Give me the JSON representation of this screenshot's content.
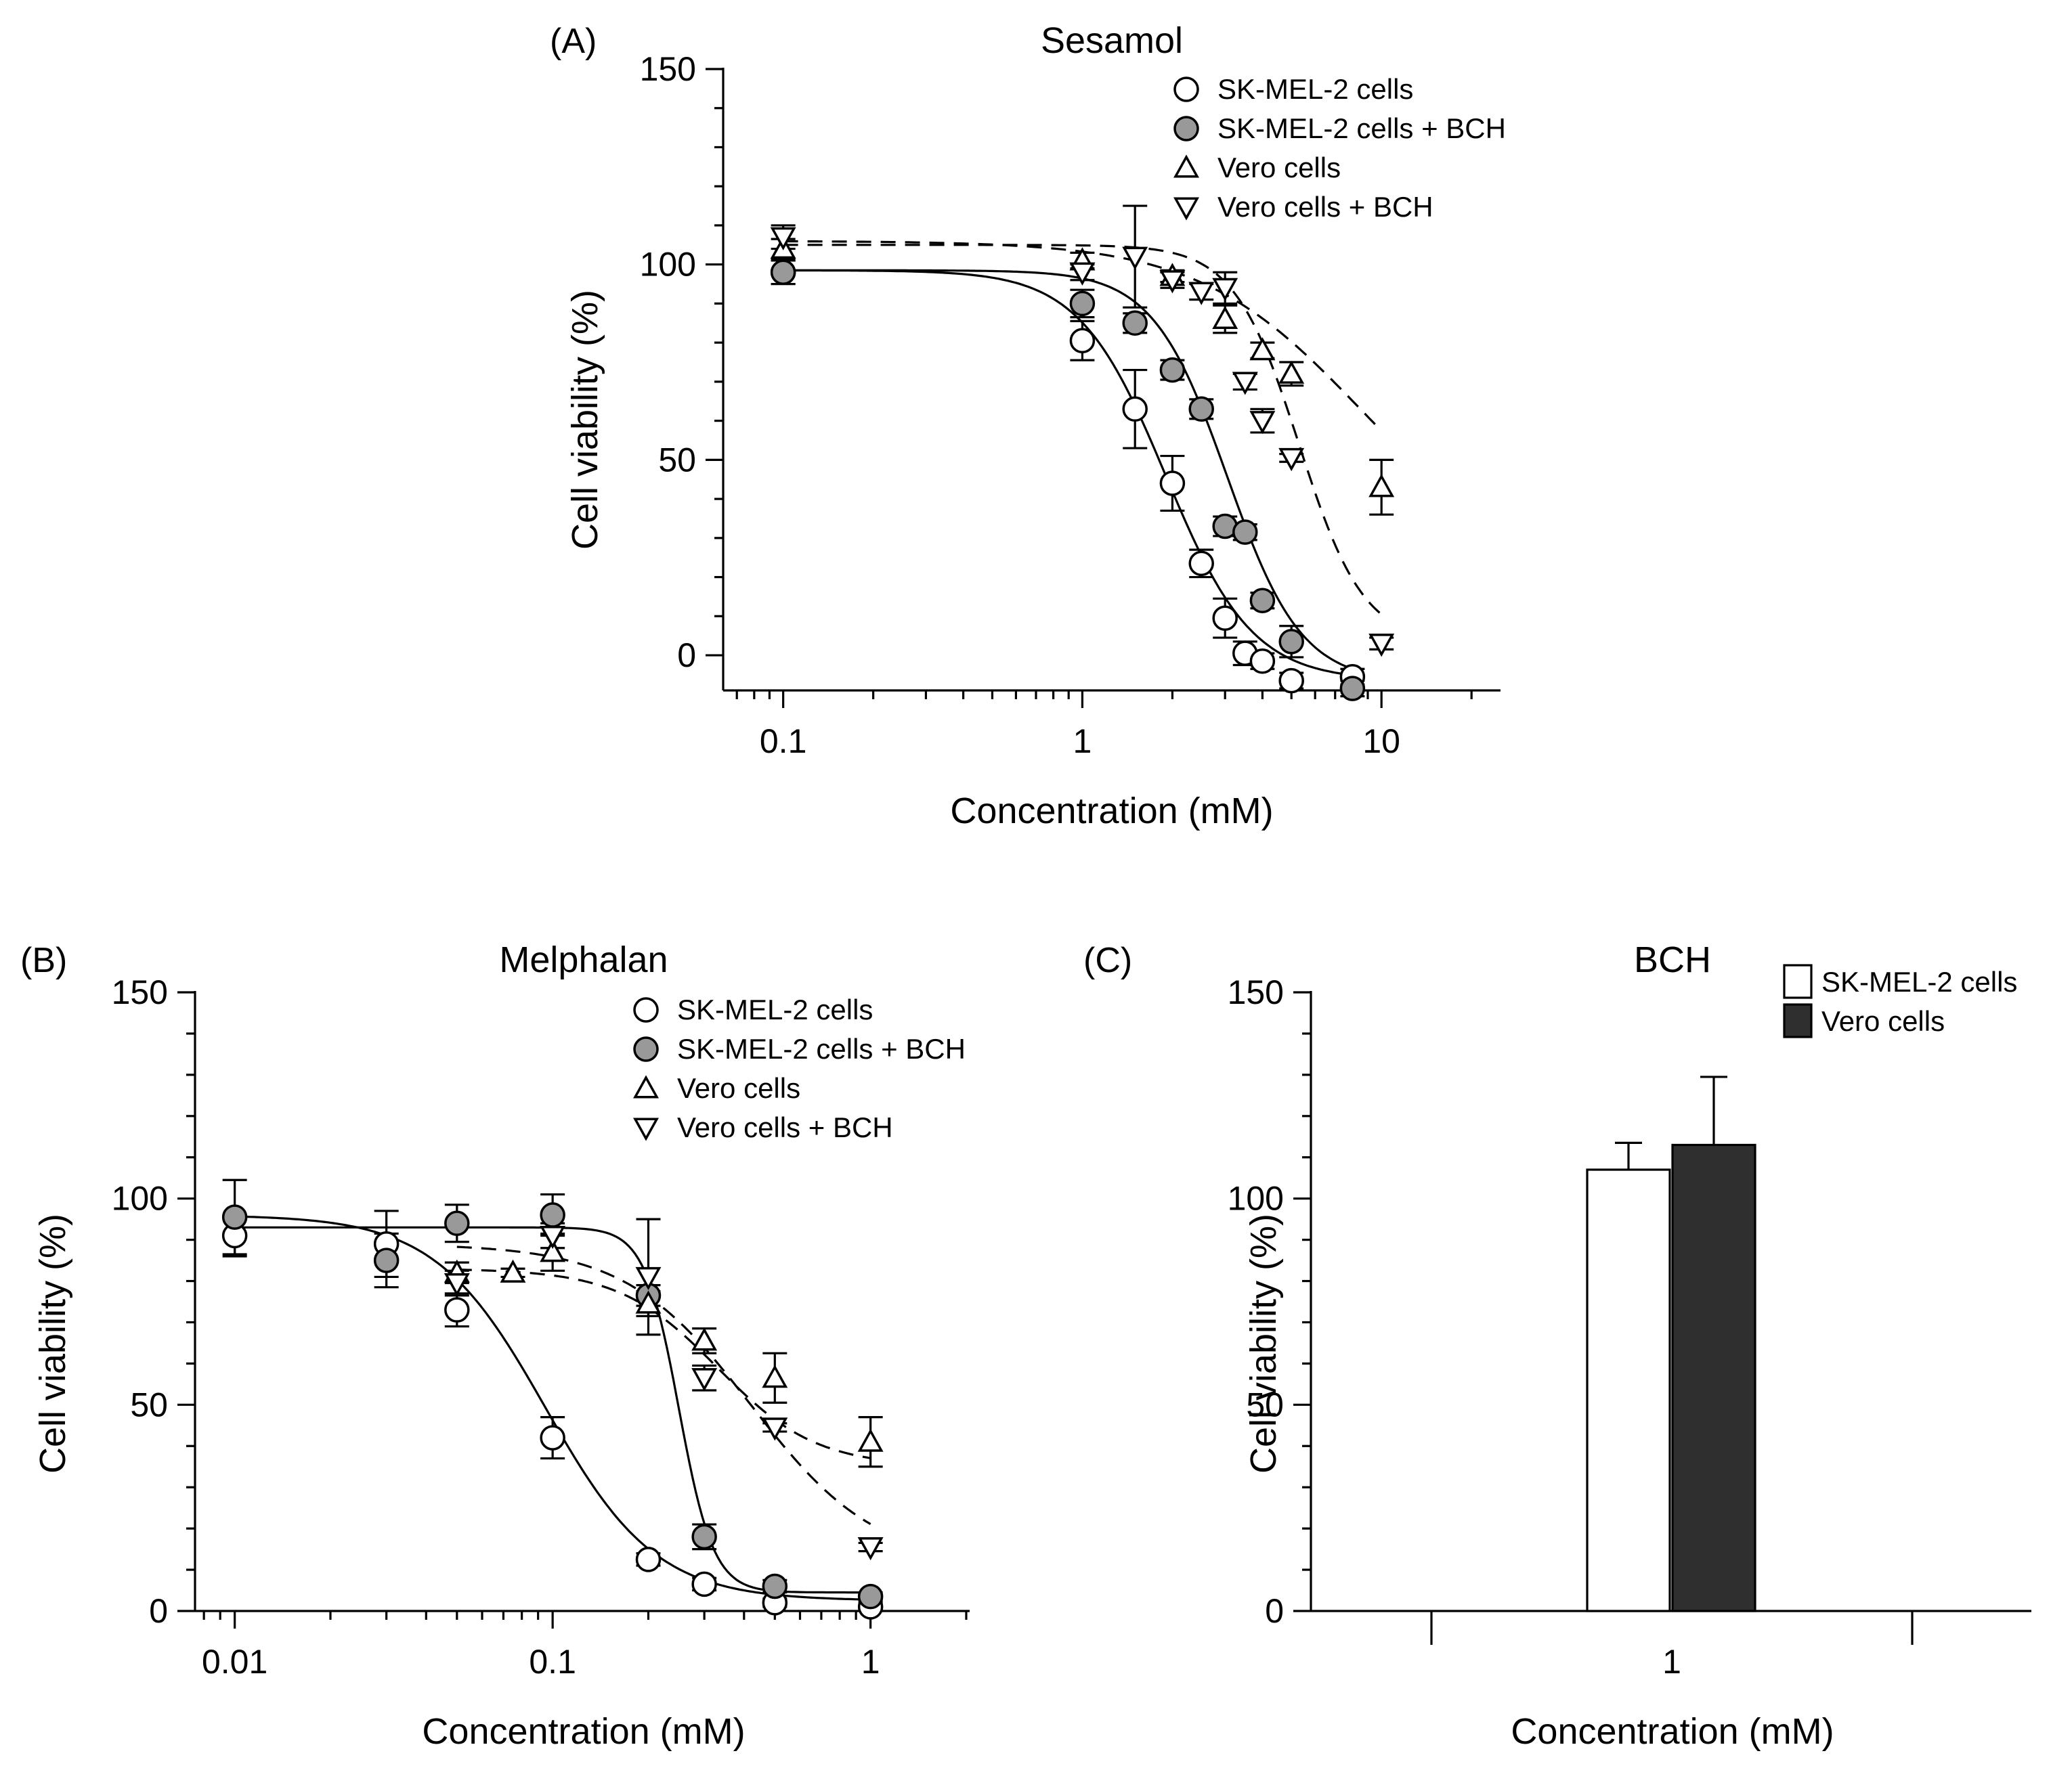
{
  "figure": {
    "y_axis_label": "Cell viability (%)",
    "x_axis_label": "Concentration (mM)",
    "colors": {
      "filled_marker": "#999999",
      "bar_sk_mel_2": "#ffffff",
      "bar_vero": "#2f2f2f",
      "axis": "#000000"
    }
  },
  "chart_data": [
    {
      "panel_label": "(A)",
      "type": "scatter",
      "title": "Sesamol",
      "xlabel": "Concentration (mM)",
      "ylabel": "Cell viability (%)",
      "xscale": "log",
      "xlim": [
        0.063,
        25
      ],
      "ylim": [
        -9,
        150
      ],
      "x_ticks": [
        0.1,
        1,
        10
      ],
      "x_tick_labels": [
        "0.1",
        "1",
        "10"
      ],
      "y_ticks": [
        0,
        50,
        100,
        150
      ],
      "y_tick_labels": [
        "0",
        "50",
        "100",
        "150"
      ],
      "legend_position": "top-right",
      "series": [
        {
          "name": "SK-MEL-2 cells",
          "marker": "circle-open",
          "line": "solid",
          "x": [
            0.1,
            1,
            1.5,
            2,
            2.5,
            3,
            3.5,
            4,
            5,
            8
          ],
          "y": [
            98,
            80.5,
            63,
            44,
            23.5,
            9.5,
            0.5,
            -1.5,
            -6.5,
            -5.5
          ],
          "err": [
            3,
            5,
            10,
            7,
            3.5,
            5,
            3,
            2,
            2,
            2
          ],
          "fit": {
            "top": 98.5,
            "bottom": -6.5,
            "ec50": 1.9,
            "hill": 3
          }
        },
        {
          "name": "SK-MEL-2 cells + BCH",
          "marker": "circle-filled",
          "line": "solid",
          "x": [
            0.1,
            1,
            1.5,
            2,
            2.5,
            3,
            3.5,
            4,
            5,
            8
          ],
          "y": [
            98,
            90,
            85,
            73,
            63,
            33,
            31.5,
            14,
            3.5,
            -8.5
          ],
          "err": [
            3,
            3.5,
            2.5,
            2.5,
            2.5,
            2.5,
            2,
            2,
            4,
            2
          ],
          "fit": {
            "top": 98.5,
            "bottom": -7,
            "ec50": 3.05,
            "hill": 3.5
          }
        },
        {
          "name": "Vero cells",
          "marker": "triangle-up",
          "line": "dashed",
          "x": [
            0.1,
            1,
            2,
            3,
            4,
            5,
            10
          ],
          "y": [
            104,
            101,
            97,
            86,
            78,
            72,
            43
          ],
          "err": [
            2.5,
            2,
            1.5,
            3.5,
            2,
            3,
            7
          ],
          "fit": {
            "top": 106,
            "bottom": 20,
            "ec50": 8.5,
            "hill": 1.6
          }
        },
        {
          "name": "Vero cells + BCH",
          "marker": "triangle-down",
          "line": "dashed",
          "x": [
            0.1,
            1,
            1.5,
            2,
            2.5,
            3,
            3.5,
            4,
            5,
            10
          ],
          "y": [
            107,
            98,
            102,
            96,
            93,
            94,
            70,
            60,
            50.5,
            3
          ],
          "err": [
            3,
            2,
            13,
            2,
            2,
            4,
            2,
            3,
            1,
            1.5
          ],
          "fit": {
            "top": 105,
            "bottom": 3,
            "ec50": 5.3,
            "hill": 4
          }
        }
      ]
    },
    {
      "panel_label": "(B)",
      "type": "scatter",
      "title": "Melphalan",
      "xlabel": "Concentration (mM)",
      "ylabel": "Cell viability (%)",
      "xscale": "log",
      "xlim": [
        0.0075,
        2.05
      ],
      "ylim": [
        0,
        150
      ],
      "x_ticks": [
        0.01,
        0.1,
        1
      ],
      "x_tick_labels": [
        "0.01",
        "0.1",
        "1"
      ],
      "y_ticks": [
        0,
        50,
        100,
        150
      ],
      "y_tick_labels": [
        "0",
        "50",
        "100",
        "150"
      ],
      "legend_position": "top-right",
      "series": [
        {
          "name": "SK-MEL-2 cells",
          "marker": "circle-open",
          "line": "solid",
          "x": [
            0.01,
            0.03,
            0.05,
            0.1,
            0.2,
            0.3,
            0.5,
            1
          ],
          "y": [
            91,
            89,
            73,
            42,
            12.5,
            6.5,
            2,
            1
          ],
          "err": [
            5,
            8,
            4,
            5,
            1.5,
            1.5,
            1,
            1
          ],
          "fit": {
            "top": 96,
            "bottom": 2.5,
            "ec50": 0.095,
            "hill": 2.5
          }
        },
        {
          "name": "SK-MEL-2 cells + BCH",
          "marker": "circle-filled",
          "line": "solid",
          "x": [
            0.01,
            0.03,
            0.05,
            0.1,
            0.2,
            0.3,
            0.5,
            1
          ],
          "y": [
            95.5,
            85,
            94,
            96,
            76.5,
            18,
            6,
            3.5
          ],
          "err": [
            9,
            6.5,
            4.5,
            5,
            2.5,
            3,
            1.5,
            1
          ],
          "fit": {
            "top": 93,
            "bottom": 4.5,
            "ec50": 0.25,
            "hill": 8
          }
        },
        {
          "name": "Vero cells",
          "marker": "triangle-up",
          "line": "dashed",
          "x": [
            0.05,
            0.075,
            0.1,
            0.2,
            0.3,
            0.5,
            1
          ],
          "y": [
            82,
            82,
            87,
            74.5,
            65.5,
            56.5,
            41
          ],
          "err": [
            2.5,
            1,
            4.5,
            3,
            3,
            6,
            6
          ],
          "fit": {
            "top": 83,
            "bottom": 35,
            "ec50": 0.33,
            "hill": 2.8
          }
        },
        {
          "name": "Vero cells + BCH",
          "marker": "triangle-down",
          "line": "dashed",
          "x": [
            0.05,
            0.1,
            0.2,
            0.3,
            0.5,
            1
          ],
          "y": [
            79.5,
            91,
            81,
            56.5,
            44.5,
            15.5
          ],
          "err": [
            3,
            3,
            14,
            3,
            1,
            1
          ],
          "fit": {
            "top": 89,
            "bottom": 11,
            "ec50": 0.42,
            "hill": 2.2
          }
        }
      ]
    },
    {
      "panel_label": "(C)",
      "type": "bar",
      "title": "BCH",
      "xlabel": "Concentration (mM)",
      "ylabel": "Cell viability (%)",
      "categories": [
        "1"
      ],
      "ylim": [
        0,
        150
      ],
      "y_ticks": [
        0,
        50,
        100,
        150
      ],
      "y_tick_labels": [
        "0",
        "50",
        "100",
        "150"
      ],
      "legend_position": "top-right",
      "series": [
        {
          "name": "SK-MEL-2 cells",
          "color": "#ffffff",
          "values": [
            107
          ],
          "err": [
            6.5
          ]
        },
        {
          "name": "Vero cells",
          "color": "#2f2f2f",
          "values": [
            113
          ],
          "err": [
            16.5
          ]
        }
      ]
    }
  ]
}
